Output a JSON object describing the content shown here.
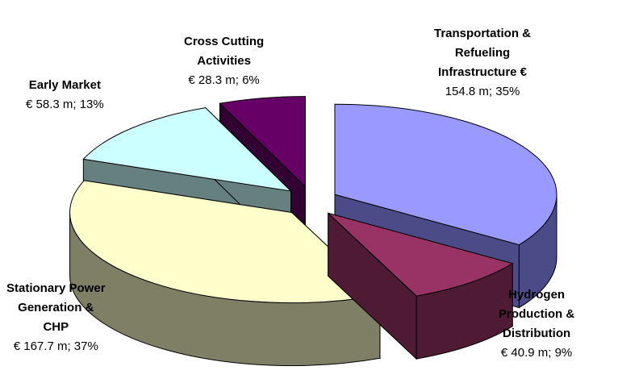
{
  "chart_data": {
    "type": "pie",
    "style": "3d-exploded",
    "title": "",
    "slices": [
      {
        "label_lines": [
          "Transportation &",
          "Refueling",
          "Infrastructure  €"
        ],
        "value_text": "154.8 m; 35%",
        "value": 154.8,
        "percent": 35,
        "color": "#9999ff",
        "side_color": "#4b4b87"
      },
      {
        "label_lines": [
          "Hydrogen",
          "Production &",
          "Distribution"
        ],
        "value_text": "€ 40.9 m; 9%",
        "value": 40.9,
        "percent": 9,
        "color": "#993366",
        "side_color": "#4f1a33"
      },
      {
        "label_lines": [
          "Stationary Power",
          "Generation &",
          "CHP"
        ],
        "value_text": "€ 167.7 m; 37%",
        "value": 167.7,
        "percent": 37,
        "color": "#ffffcc",
        "side_color": "#7f7f66"
      },
      {
        "label_lines": [
          "Early Market"
        ],
        "value_text": "€ 58.3 m; 13%",
        "value": 58.3,
        "percent": 13,
        "color": "#ccffff",
        "side_color": "#668080"
      },
      {
        "label_lines": [
          "Cross Cutting",
          "Activities"
        ],
        "value_text": "€ 28.3 m; 6%",
        "value": 28.3,
        "percent": 6,
        "color": "#660066",
        "side_color": "#330033"
      }
    ]
  }
}
